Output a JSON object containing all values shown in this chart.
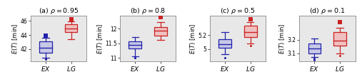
{
  "panels": [
    {
      "title": "(a) $\\rho = 0.95$",
      "ylabel": "$E(T)$ [min]",
      "ylim": [
        40.2,
        46.8
      ],
      "yticks": [
        42,
        44,
        46
      ],
      "ytick_labels": [
        "42",
        "44",
        "46"
      ],
      "EX": {
        "whislo": 40.8,
        "q1": 41.5,
        "med": 42.2,
        "q3": 43.1,
        "whishi": 43.6,
        "fliers_low": [
          40.55,
          40.65
        ],
        "fliers_high": [
          43.9
        ]
      },
      "LG": {
        "whislo": 43.4,
        "q1": 44.4,
        "med": 44.9,
        "q3": 45.5,
        "whishi": 45.9,
        "fliers_low": [],
        "fliers_high": [
          46.2
        ]
      }
    },
    {
      "title": "(b) $\\rho = 0.8$",
      "ylabel": "$E(T)$ [min]",
      "ylim": [
        10.88,
        12.45
      ],
      "yticks": [
        11,
        11.5,
        12
      ],
      "ytick_labels": [
        "11",
        "11.5",
        "12"
      ],
      "EX": {
        "whislo": 11.07,
        "q1": 11.32,
        "med": 11.45,
        "q3": 11.58,
        "whishi": 11.72,
        "fliers_low": [
          11.0,
          11.02
        ],
        "fliers_high": []
      },
      "LG": {
        "whislo": 11.62,
        "q1": 11.75,
        "med": 11.92,
        "q3": 12.05,
        "whishi": 12.22,
        "fliers_low": [],
        "fliers_high": [
          12.38
        ]
      }
    },
    {
      "title": "(c) $\\rho = 0.5$",
      "ylabel": "$E(T)$ [min]",
      "ylim": [
        4.82,
        5.48
      ],
      "yticks": [
        5,
        5.2
      ],
      "ytick_labels": [
        "5",
        "5.2"
      ],
      "EX": {
        "whislo": 4.93,
        "q1": 5.02,
        "med": 5.07,
        "q3": 5.14,
        "whishi": 5.24,
        "fliers_low": [
          4.87
        ],
        "fliers_high": []
      },
      "LG": {
        "whislo": 5.08,
        "q1": 5.17,
        "med": 5.24,
        "q3": 5.33,
        "whishi": 5.38,
        "fliers_low": [
          5.05
        ],
        "fliers_high": [
          5.43
        ]
      }
    },
    {
      "title": "(d) $\\rho = 0.1$",
      "ylabel": "$E(T)$ [min]",
      "ylim": [
        3.04,
        3.38
      ],
      "yticks": [
        3.1,
        3.2
      ],
      "ytick_labels": [
        "3.1",
        "3.2"
      ],
      "EX": {
        "whislo": 3.075,
        "q1": 3.1,
        "med": 3.135,
        "q3": 3.175,
        "whishi": 3.21,
        "fliers_low": [
          3.055,
          3.063
        ],
        "fliers_high": []
      },
      "LG": {
        "whislo": 3.1,
        "q1": 3.155,
        "med": 3.195,
        "q3": 3.255,
        "whishi": 3.29,
        "fliers_low": [
          3.085
        ],
        "fliers_high": [
          3.33
        ]
      }
    }
  ],
  "ex_edge": "#2222aa",
  "lg_edge": "#cc2222",
  "ex_face": "#c8c8e8",
  "lg_face": "#f0c0c0",
  "box_width": 0.5,
  "linewidth": 0.9,
  "bg_color": "#e8e8e8"
}
